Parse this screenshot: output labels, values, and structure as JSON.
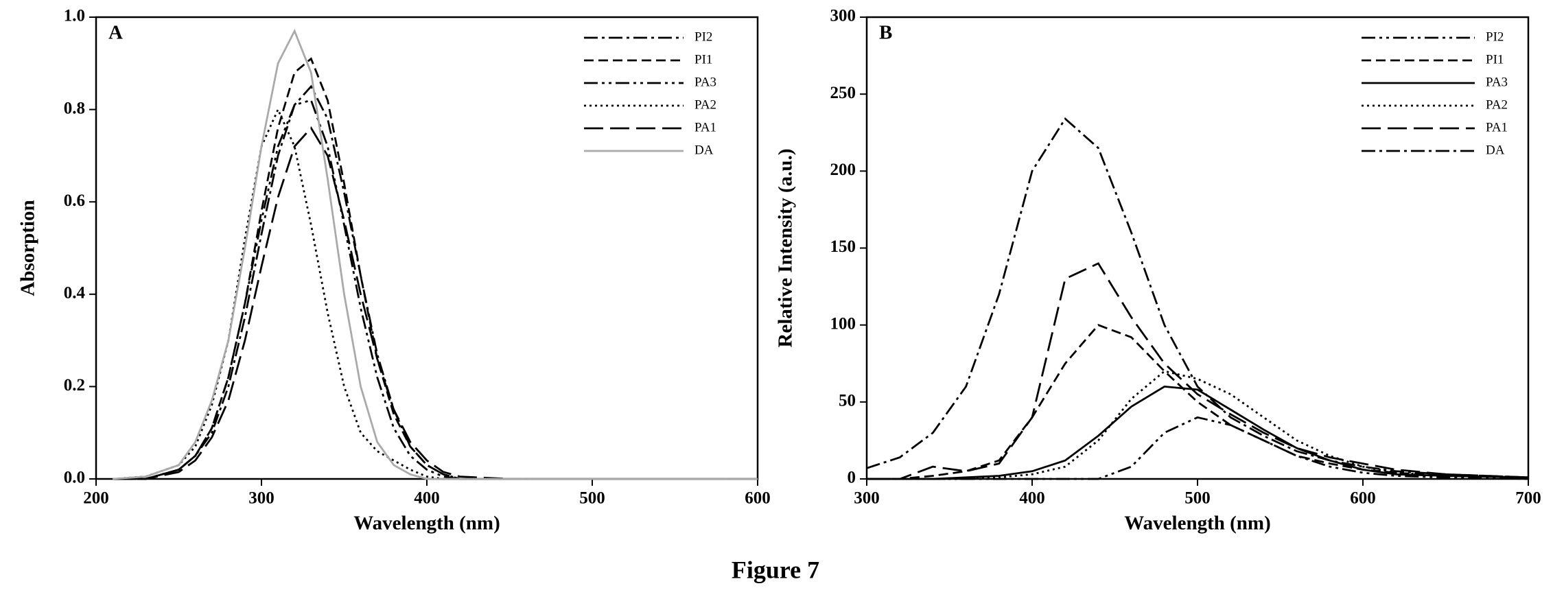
{
  "caption": "Figure 7",
  "chart_data": [
    {
      "type": "line",
      "annotation": "A",
      "x_label": "Wavelength (nm)",
      "y_label": "Absorption",
      "xlim": [
        200,
        600
      ],
      "xticks": [
        200,
        300,
        400,
        500,
        600
      ],
      "ylim": [
        0,
        1
      ],
      "yticks": [
        {
          "value": 0,
          "label": "0.0"
        },
        {
          "value": 0.2,
          "label": "0.2"
        },
        {
          "value": 0.4,
          "label": "0.4"
        },
        {
          "value": 0.6,
          "label": "0.6"
        },
        {
          "value": 0.8,
          "label": "0.8"
        },
        {
          "value": 1,
          "label": "1.0"
        }
      ],
      "x": [
        210,
        230,
        250,
        260,
        270,
        280,
        290,
        300,
        310,
        320,
        330,
        340,
        350,
        360,
        370,
        380,
        390,
        400,
        410,
        420,
        450,
        600
      ],
      "series": [
        {
          "name": "PI2",
          "color": "#000000",
          "dash": "dashdot",
          "values": [
            0,
            0,
            0.02,
            0.05,
            0.1,
            0.2,
            0.35,
            0.53,
            0.7,
            0.81,
            0.85,
            0.78,
            0.62,
            0.44,
            0.27,
            0.15,
            0.07,
            0.03,
            0.01,
            0,
            0,
            0
          ]
        },
        {
          "name": "PI1",
          "color": "#000000",
          "dash": "dash",
          "values": [
            0,
            0,
            0.02,
            0.05,
            0.11,
            0.22,
            0.38,
            0.58,
            0.76,
            0.88,
            0.91,
            0.82,
            0.64,
            0.44,
            0.26,
            0.14,
            0.07,
            0.03,
            0.01,
            0,
            0,
            0
          ]
        },
        {
          "name": "PA3",
          "color": "#000000",
          "dash": "dashdotdot",
          "values": [
            0,
            0,
            0.02,
            0.05,
            0.11,
            0.22,
            0.38,
            0.56,
            0.72,
            0.81,
            0.82,
            0.72,
            0.55,
            0.37,
            0.22,
            0.11,
            0.05,
            0.02,
            0.005,
            0,
            0,
            0
          ]
        },
        {
          "name": "PA2",
          "color": "#000000",
          "dash": "dot",
          "values": [
            0,
            0.005,
            0.03,
            0.07,
            0.16,
            0.3,
            0.52,
            0.72,
            0.8,
            0.72,
            0.55,
            0.36,
            0.2,
            0.1,
            0.06,
            0.04,
            0.02,
            0.005,
            0,
            0,
            0,
            0
          ]
        },
        {
          "name": "PA1",
          "color": "#000000",
          "dash": "longdash",
          "values": [
            0,
            0,
            0.015,
            0.04,
            0.09,
            0.17,
            0.3,
            0.46,
            0.61,
            0.72,
            0.76,
            0.7,
            0.56,
            0.4,
            0.26,
            0.15,
            0.08,
            0.04,
            0.015,
            0.005,
            0,
            0
          ]
        },
        {
          "name": "DA",
          "color": "#aaaaaa",
          "dash": "solid",
          "values": [
            0,
            0.005,
            0.03,
            0.08,
            0.17,
            0.3,
            0.5,
            0.72,
            0.9,
            0.97,
            0.88,
            0.65,
            0.4,
            0.2,
            0.08,
            0.03,
            0.01,
            0,
            0,
            0,
            0,
            0
          ]
        }
      ]
    },
    {
      "type": "line",
      "annotation": "B",
      "x_label": "Wavelength (nm)",
      "y_label": "Relative Intensity (a.u.)",
      "xlim": [
        300,
        700
      ],
      "xticks": [
        300,
        400,
        500,
        600,
        700
      ],
      "ylim": [
        0,
        300
      ],
      "yticks": [
        0,
        50,
        100,
        150,
        200,
        250,
        300
      ],
      "x": [
        300,
        320,
        340,
        360,
        380,
        400,
        420,
        440,
        460,
        480,
        500,
        520,
        540,
        560,
        580,
        600,
        620,
        650,
        700
      ],
      "series": [
        {
          "name": "PI2",
          "color": "#000000",
          "dash": "dashdotdot",
          "values": [
            0,
            0,
            0,
            0,
            0,
            0,
            0,
            0,
            8,
            30,
            40,
            35,
            25,
            15,
            8,
            4,
            2,
            1,
            0
          ]
        },
        {
          "name": "PI1",
          "color": "#000000",
          "dash": "dash",
          "values": [
            0,
            0,
            2,
            5,
            12,
            40,
            75,
            100,
            92,
            70,
            50,
            35,
            25,
            15,
            10,
            6,
            4,
            2,
            1
          ]
        },
        {
          "name": "PA3",
          "color": "#000000",
          "dash": "solid",
          "values": [
            0,
            0,
            0,
            1,
            2,
            5,
            12,
            28,
            47,
            60,
            58,
            45,
            32,
            20,
            12,
            6,
            3,
            2,
            1
          ]
        },
        {
          "name": "PA2",
          "color": "#000000",
          "dash": "dot",
          "values": [
            0,
            0,
            0,
            0,
            1,
            3,
            8,
            25,
            52,
            70,
            65,
            55,
            40,
            25,
            15,
            8,
            4,
            2,
            1
          ]
        },
        {
          "name": "PA1",
          "color": "#000000",
          "dash": "longdash",
          "values": [
            0,
            0,
            8,
            5,
            10,
            40,
            130,
            140,
            105,
            75,
            55,
            42,
            30,
            20,
            14,
            10,
            6,
            3,
            1
          ]
        },
        {
          "name": "DA",
          "color": "#000000",
          "dash": "dashdot",
          "values": [
            7,
            14,
            30,
            60,
            120,
            200,
            234,
            215,
            160,
            100,
            60,
            40,
            28,
            18,
            12,
            8,
            5,
            3,
            1
          ]
        }
      ]
    }
  ]
}
